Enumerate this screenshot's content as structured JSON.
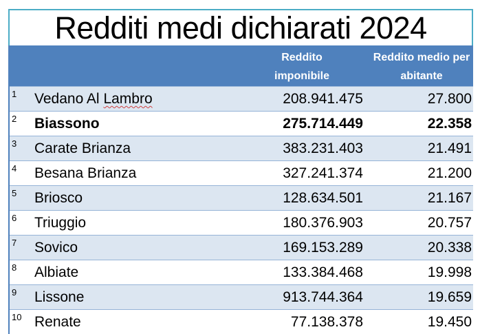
{
  "title": "Redditi medi dichiarati 2024",
  "header": {
    "col1": "Reddito imponibile",
    "col2": "Reddito medio per abitante"
  },
  "colors": {
    "header_bg": "#4f81bd",
    "row_alt": "#dce6f1",
    "title_border": "#4bacc6"
  },
  "rows": [
    {
      "rank": "1",
      "name": "Vedano Al Lambro",
      "imponibile": "208.941.475",
      "medio": "27.800"
    },
    {
      "rank": "2",
      "name": "Biassono",
      "imponibile": "275.714.449",
      "medio": "22.358",
      "bold": true
    },
    {
      "rank": "3",
      "name": "Carate Brianza",
      "imponibile": "383.231.403",
      "medio": "21.491"
    },
    {
      "rank": "4",
      "name": "Besana Brianza",
      "imponibile": "327.241.374",
      "medio": "21.200"
    },
    {
      "rank": "5",
      "name": "Briosco",
      "imponibile": "128.634.501",
      "medio": "21.167"
    },
    {
      "rank": "6",
      "name": "Triuggio",
      "imponibile": "180.376.903",
      "medio": "20.757"
    },
    {
      "rank": "7",
      "name": "Sovico",
      "imponibile": "169.153.289",
      "medio": "20.338"
    },
    {
      "rank": "8",
      "name": "Albiate",
      "imponibile": "133.384.468",
      "medio": "19.998"
    },
    {
      "rank": "9",
      "name": "Lissone",
      "imponibile": "913.744.364",
      "medio": "19.659"
    },
    {
      "rank": "10",
      "name": "Renate",
      "imponibile": "77.138.378",
      "medio": "19.450"
    }
  ]
}
